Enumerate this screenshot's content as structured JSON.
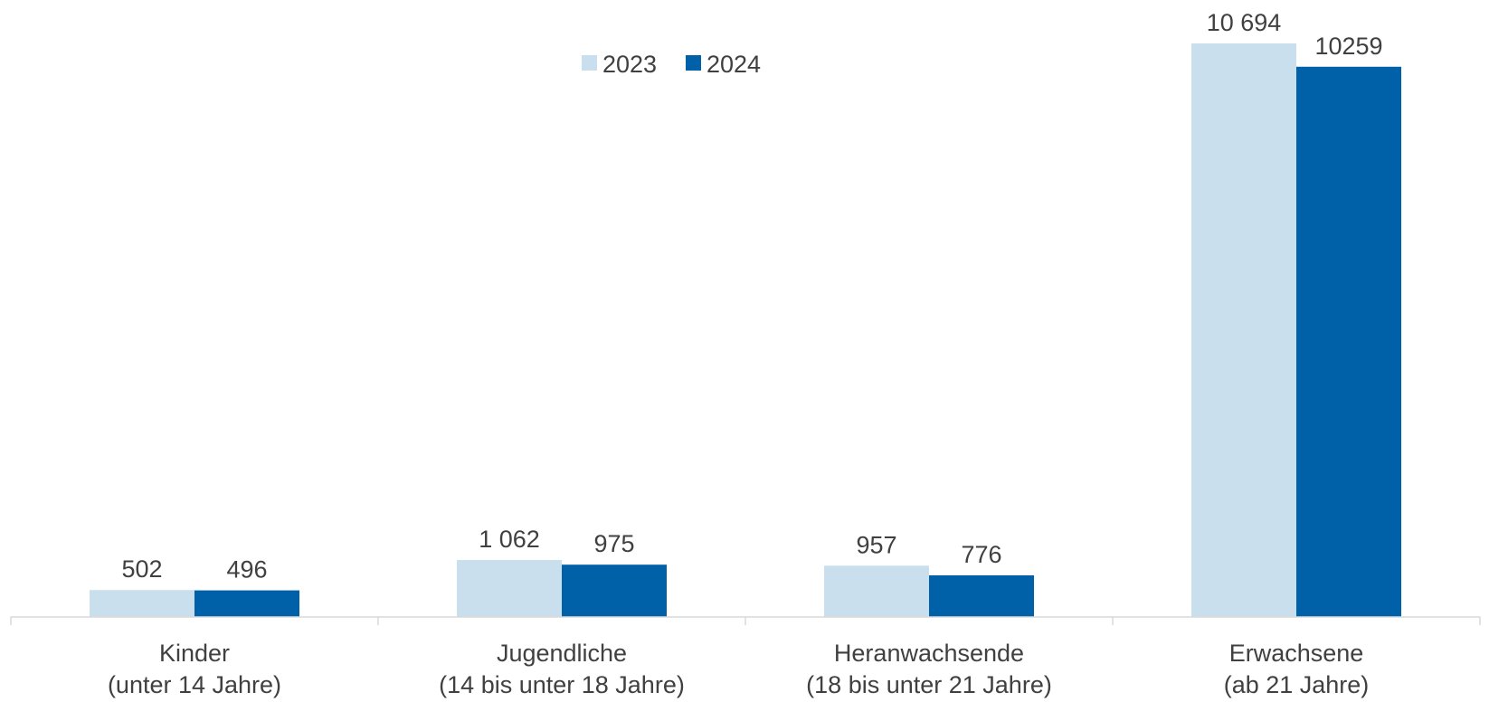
{
  "chart_data": {
    "type": "bar",
    "title": "",
    "xlabel": "",
    "ylabel": "",
    "ylim": [
      0,
      11200
    ],
    "grid": false,
    "legend_position": "top-center",
    "categories": [
      {
        "line1": "Kinder",
        "line2": "(unter 14 Jahre)"
      },
      {
        "line1": "Jugendliche",
        "line2": "(14 bis unter 18 Jahre)"
      },
      {
        "line1": "Heranwachsende",
        "line2": "(18 bis unter 21 Jahre)"
      },
      {
        "line1": "Erwachsene",
        "line2": "(ab 21 Jahre)"
      }
    ],
    "series": [
      {
        "name": "2023",
        "color": "#c9dfed",
        "values": [
          502,
          1062,
          957,
          10694
        ],
        "labels": [
          "502",
          "1 062",
          "957",
          "10 694"
        ]
      },
      {
        "name": "2024",
        "color": "#0060a8",
        "values": [
          496,
          975,
          776,
          10259
        ],
        "labels": [
          "496",
          "975",
          "776",
          "10259"
        ]
      }
    ]
  }
}
